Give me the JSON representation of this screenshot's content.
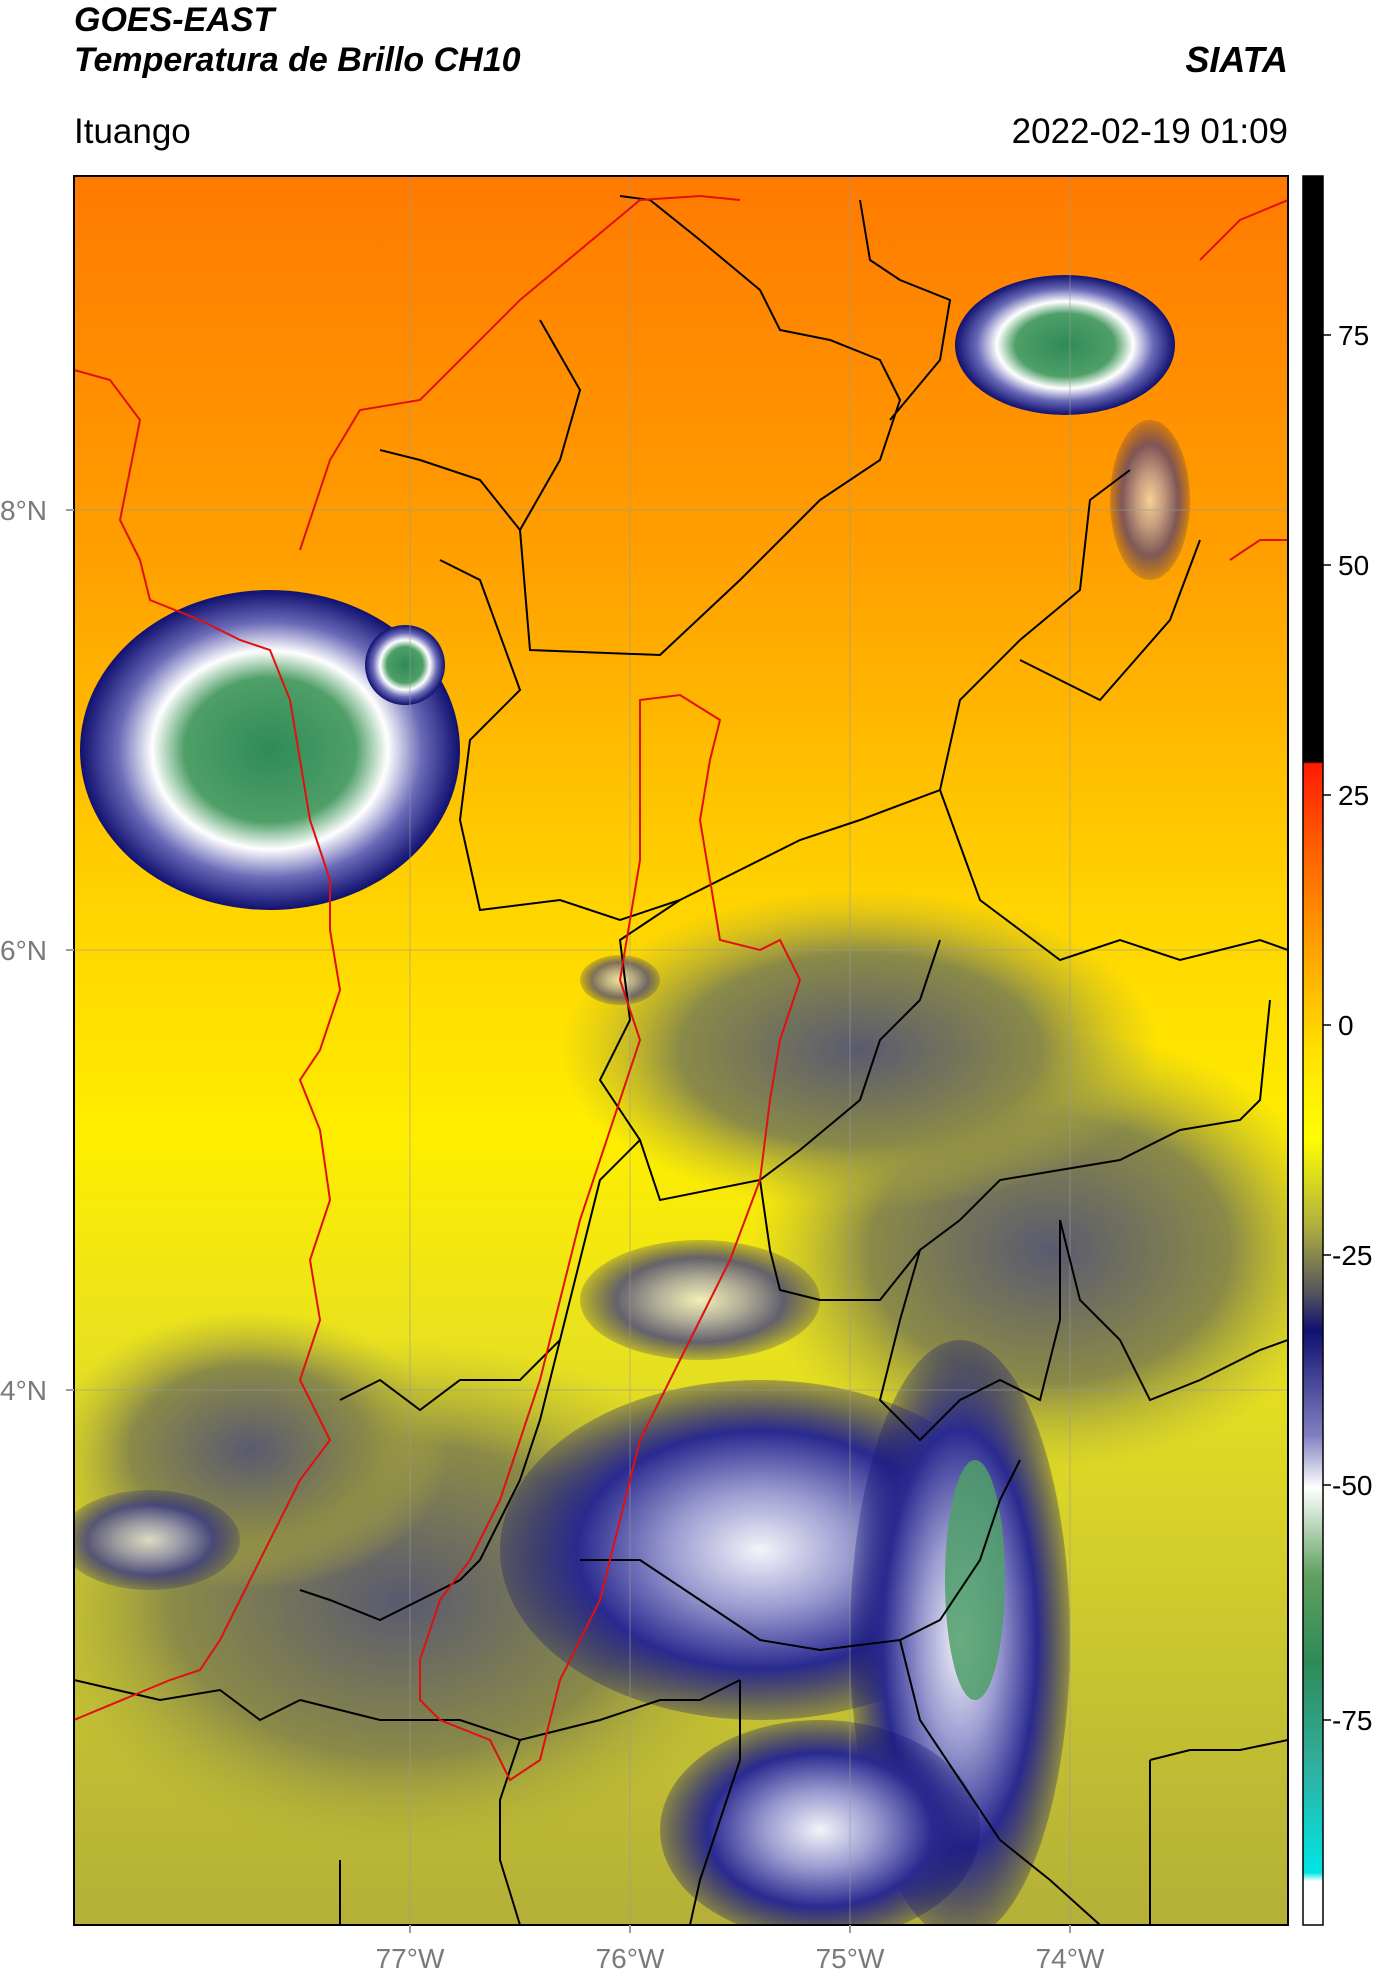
{
  "header": {
    "satellite": "GOES-EAST",
    "product": "Temperatura de Brillo CH10",
    "agency": "SIATA",
    "location": "Ituango",
    "datetime": "2022-02-19 01:09"
  },
  "map": {
    "lat_ticks": [
      "8°N",
      "6°N",
      "4°N"
    ],
    "lon_ticks": [
      "77°W",
      "76°W",
      "75°W",
      "74°W"
    ]
  },
  "colorbar": {
    "ticks": [
      "75",
      "50",
      "25",
      "0",
      "-25",
      "-50",
      "-75"
    ],
    "range": [
      -90,
      90
    ],
    "colors": {
      "black": "#000000",
      "red": "#ff1a00",
      "orange": "#ff8a00",
      "yellow": "#ffff00",
      "olive": "#9a9a40",
      "navy": "#101070",
      "white": "#ffffff",
      "green": "#2e8b57",
      "cyan": "#00e5e5"
    }
  }
}
